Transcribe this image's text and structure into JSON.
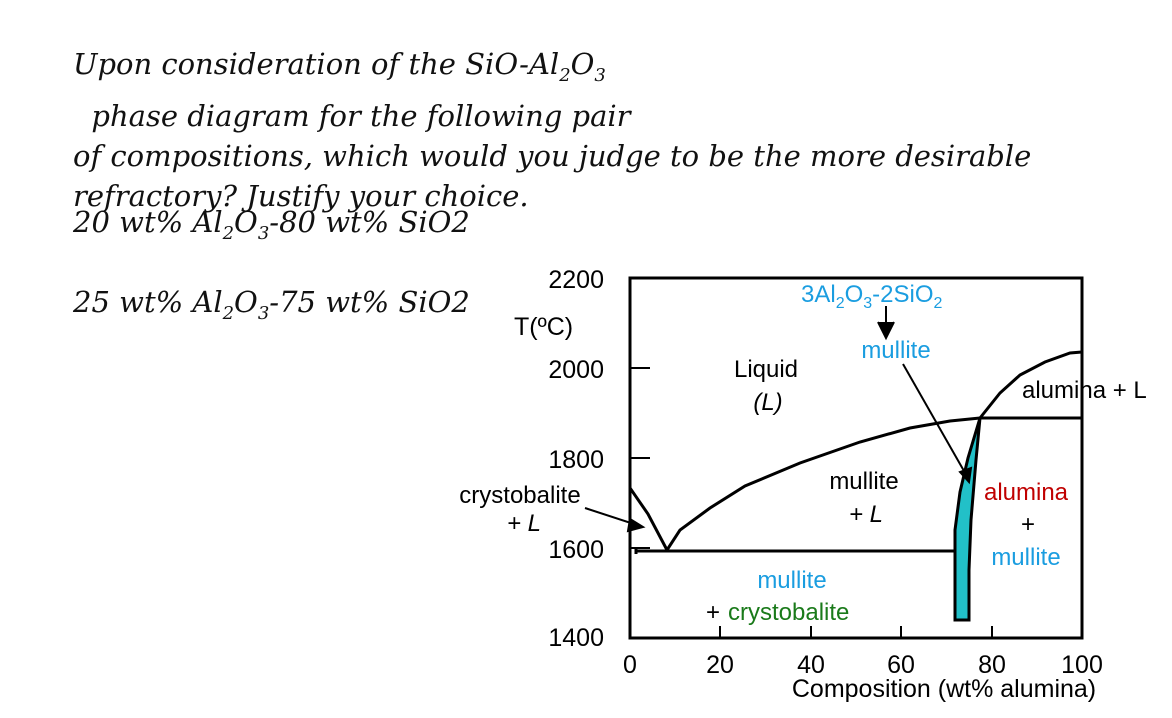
{
  "question": {
    "line1": "Upon consideration of the SiO-Al",
    "line1_sub1": "2",
    "line1_mid": "O",
    "line1_sub2": "3",
    "line1_end": "  phase diagram for the following pair",
    "line2": "of compositions, which would you judge to be the more desirable",
    "line3": "refractory?  Justify your choice."
  },
  "compositions": [
    {
      "pre": "20 wt% Al",
      "s1": "2",
      "mid": "O",
      "s2": "3",
      "post": "-80 wt% SiO2"
    },
    {
      "pre": "25 wt% Al",
      "s1": "2",
      "mid": "O",
      "s2": "3",
      "post": "-75 wt% SiO2"
    }
  ],
  "diagram": {
    "ylabel": "T(ºC)",
    "xlabel": "Composition (wt% alumina)",
    "x_ticks": [
      "0",
      "20",
      "40",
      "60",
      "80",
      "100"
    ],
    "y_ticks": [
      "2200",
      "2000",
      "1800",
      "1600",
      "1400"
    ],
    "x_range": [
      0,
      100
    ],
    "y_range": [
      1400,
      2200
    ],
    "regions": {
      "liquid": "Liquid",
      "liquid_sym": "(L)",
      "cryst_L_1": "crystobalite",
      "cryst_L_2": "+ L",
      "mullite_L_1": "mullite",
      "mullite_L_2": "+ L",
      "alumina_L": "alumina + L",
      "alumina_mullite_1": "alumina",
      "alumina_mullite_2": "+",
      "alumina_mullite_3": "mullite",
      "mullite_cryst_1": "mullite",
      "mullite_cryst_2": "+ ",
      "mullite_cryst_3": "crystobalite"
    },
    "compound": {
      "formula_a": "3Al",
      "formula_a_sub": "2",
      "formula_b": "O",
      "formula_b_sub": "3",
      "formula_c": "-2SiO",
      "formula_c_sub": "2",
      "name": "mullite"
    },
    "colors": {
      "mullite_text": "#1a9de0",
      "crystobalite_text": "#1a7a1a",
      "alumina_text": "#c00000",
      "mullite_phase_fill": "#22c0c8"
    }
  }
}
